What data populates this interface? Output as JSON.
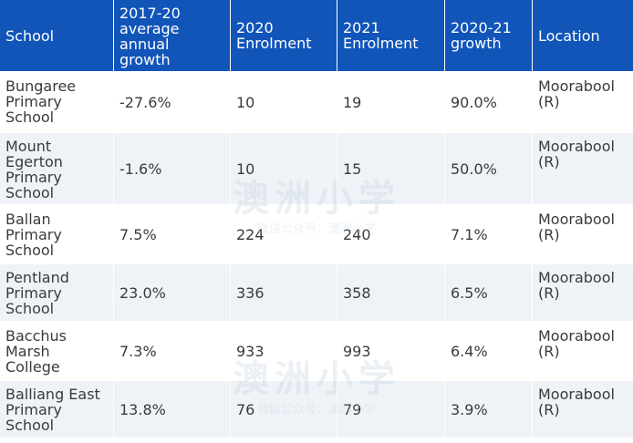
{
  "table": {
    "headers": [
      "School",
      "2017-20 average annual growth",
      "2020 Enrolment",
      "2021 Enrolment",
      "2020-21 growth",
      "Location"
    ],
    "rows": [
      [
        "Bungaree Primary School",
        "-27.6%",
        "10",
        "19",
        "90.0%",
        "Moorabool (R)"
      ],
      [
        "Mount Egerton Primary School",
        "-1.6%",
        "10",
        "15",
        "50.0%",
        "Moorabool (R)"
      ],
      [
        "Ballan Primary School",
        "7.5%",
        "224",
        "240",
        "7.1%",
        "Moorabool (R)"
      ],
      [
        "Pentland Primary School",
        "23.0%",
        "336",
        "358",
        "6.5%",
        "Moorabool (R)"
      ],
      [
        "Bacchus Marsh College",
        "7.3%",
        "933",
        "993",
        "6.4%",
        "Moorabool (R)"
      ],
      [
        "Balliang East Primary School",
        "13.8%",
        "76",
        "79",
        "3.9%",
        "Moorabool (R)"
      ]
    ]
  },
  "watermark": {
    "logo_text": "澳洲小学",
    "sub_text": "微信公众号：澳洲小学"
  },
  "colors": {
    "header_bg": "#1155b9",
    "header_text": "#ffffff",
    "row_alt_bg": "#eff3f8",
    "cell_text": "#3a3a3a"
  }
}
